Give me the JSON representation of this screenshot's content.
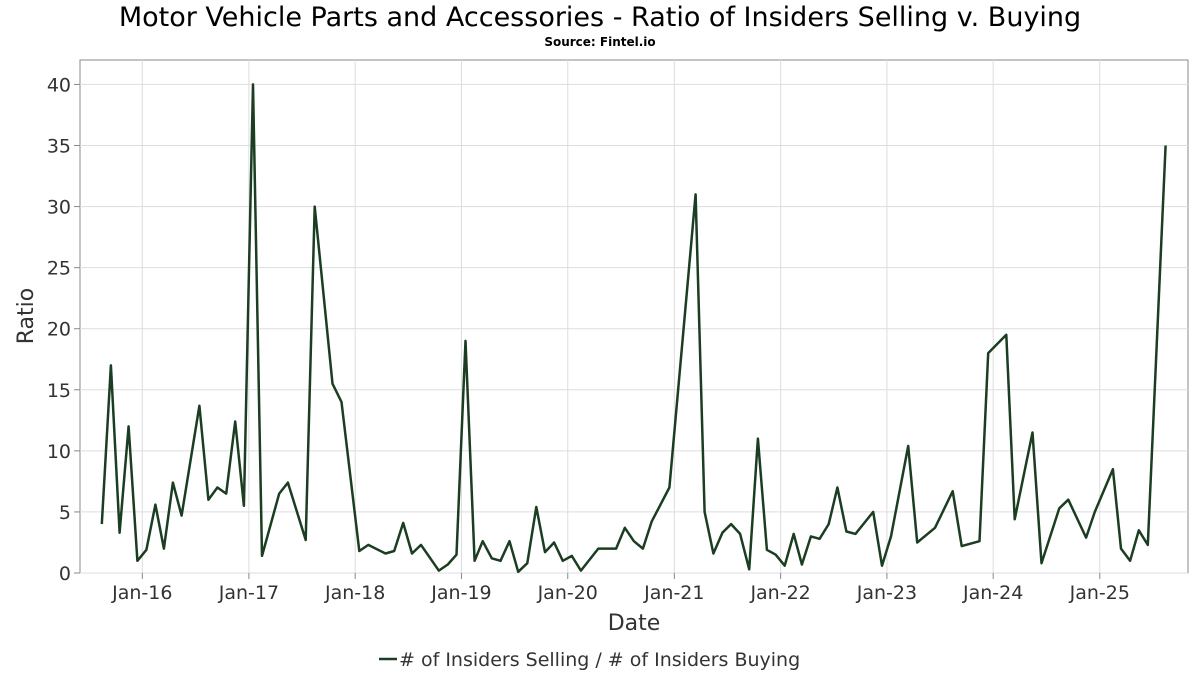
{
  "title": "Motor Vehicle Parts and Accessories - Ratio of Insiders Selling v. Buying",
  "subtitle": "Source: Fintel.io",
  "colors": {
    "line": "#1b3d22",
    "grid": "#dddddd",
    "frame": "#888888"
  },
  "chart_data": {
    "type": "line",
    "xlabel": "Date",
    "ylabel": "Ratio",
    "xlim": [
      "2015-06-01",
      "2025-10-31"
    ],
    "ylim": [
      0,
      42
    ],
    "grid": true,
    "legend_position": "bottom-center",
    "x_tick_labels": [
      "Jan-16",
      "Jan-17",
      "Jan-18",
      "Jan-19",
      "Jan-20",
      "Jan-21",
      "Jan-22",
      "Jan-23",
      "Jan-24",
      "Jan-25"
    ],
    "y_tick_labels": [
      "0",
      "5",
      "10",
      "15",
      "20",
      "25",
      "30",
      "35",
      "40"
    ],
    "series": [
      {
        "name": "# of Insiders Selling / # of Insiders Buying",
        "points": [
          [
            "2015-08-15",
            4.0
          ],
          [
            "2015-09-15",
            17.0
          ],
          [
            "2015-10-15",
            3.3
          ],
          [
            "2015-11-15",
            12.0
          ],
          [
            "2015-12-15",
            1.0
          ],
          [
            "2016-01-15",
            1.9
          ],
          [
            "2016-02-15",
            5.6
          ],
          [
            "2016-03-15",
            2.0
          ],
          [
            "2016-04-15",
            7.4
          ],
          [
            "2016-05-15",
            4.7
          ],
          [
            "2016-07-15",
            13.7
          ],
          [
            "2016-08-15",
            6.0
          ],
          [
            "2016-09-15",
            7.0
          ],
          [
            "2016-10-15",
            6.5
          ],
          [
            "2016-11-15",
            12.4
          ],
          [
            "2016-12-15",
            5.5
          ],
          [
            "2017-01-15",
            40.0
          ],
          [
            "2017-02-15",
            1.4
          ],
          [
            "2017-04-15",
            6.5
          ],
          [
            "2017-05-15",
            7.4
          ],
          [
            "2017-07-15",
            2.7
          ],
          [
            "2017-08-15",
            30.0
          ],
          [
            "2017-10-15",
            15.5
          ],
          [
            "2017-11-15",
            14.0
          ],
          [
            "2018-01-15",
            1.8
          ],
          [
            "2018-02-15",
            2.3
          ],
          [
            "2018-04-15",
            1.6
          ],
          [
            "2018-05-15",
            1.8
          ],
          [
            "2018-06-15",
            4.1
          ],
          [
            "2018-07-15",
            1.6
          ],
          [
            "2018-08-15",
            2.3
          ],
          [
            "2018-10-15",
            0.2
          ],
          [
            "2018-11-15",
            0.7
          ],
          [
            "2018-12-15",
            1.5
          ],
          [
            "2019-01-15",
            19.0
          ],
          [
            "2019-02-15",
            1.0
          ],
          [
            "2019-03-15",
            2.6
          ],
          [
            "2019-04-15",
            1.2
          ],
          [
            "2019-05-15",
            1.0
          ],
          [
            "2019-06-15",
            2.6
          ],
          [
            "2019-07-15",
            0.1
          ],
          [
            "2019-08-15",
            0.8
          ],
          [
            "2019-09-15",
            5.4
          ],
          [
            "2019-10-15",
            1.7
          ],
          [
            "2019-11-15",
            2.5
          ],
          [
            "2019-12-15",
            1.0
          ],
          [
            "2020-01-15",
            1.4
          ],
          [
            "2020-02-15",
            0.2
          ],
          [
            "2020-04-15",
            2.0
          ],
          [
            "2020-06-15",
            2.0
          ],
          [
            "2020-07-15",
            3.7
          ],
          [
            "2020-08-15",
            2.6
          ],
          [
            "2020-09-15",
            2.0
          ],
          [
            "2020-10-15",
            4.2
          ],
          [
            "2020-12-15",
            7.0
          ],
          [
            "2021-03-15",
            31.0
          ],
          [
            "2021-04-15",
            5.0
          ],
          [
            "2021-05-15",
            1.6
          ],
          [
            "2021-06-15",
            3.3
          ],
          [
            "2021-07-15",
            4.0
          ],
          [
            "2021-08-15",
            3.2
          ],
          [
            "2021-09-15",
            0.3
          ],
          [
            "2021-10-15",
            11.0
          ],
          [
            "2021-11-15",
            1.9
          ],
          [
            "2021-12-15",
            1.5
          ],
          [
            "2022-01-15",
            0.6
          ],
          [
            "2022-02-15",
            3.2
          ],
          [
            "2022-03-15",
            0.7
          ],
          [
            "2022-04-15",
            3.0
          ],
          [
            "2022-05-15",
            2.8
          ],
          [
            "2022-06-15",
            4.0
          ],
          [
            "2022-07-15",
            7.0
          ],
          [
            "2022-08-15",
            3.4
          ],
          [
            "2022-09-15",
            3.2
          ],
          [
            "2022-11-15",
            5.0
          ],
          [
            "2022-12-15",
            0.6
          ],
          [
            "2023-01-15",
            3.0
          ],
          [
            "2023-03-15",
            10.4
          ],
          [
            "2023-04-15",
            2.5
          ],
          [
            "2023-06-15",
            3.7
          ],
          [
            "2023-08-15",
            6.7
          ],
          [
            "2023-09-15",
            2.2
          ],
          [
            "2023-11-15",
            2.6
          ],
          [
            "2023-12-15",
            18.0
          ],
          [
            "2024-02-15",
            19.5
          ],
          [
            "2024-03-15",
            4.4
          ],
          [
            "2024-05-15",
            11.5
          ],
          [
            "2024-06-15",
            0.8
          ],
          [
            "2024-08-15",
            5.3
          ],
          [
            "2024-09-15",
            6.0
          ],
          [
            "2024-11-15",
            2.9
          ],
          [
            "2024-12-15",
            5.0
          ],
          [
            "2025-02-15",
            8.5
          ],
          [
            "2025-03-15",
            2.0
          ],
          [
            "2025-04-15",
            1.0
          ],
          [
            "2025-05-15",
            3.5
          ],
          [
            "2025-06-15",
            2.3
          ],
          [
            "2025-08-15",
            35.0
          ]
        ]
      }
    ]
  }
}
